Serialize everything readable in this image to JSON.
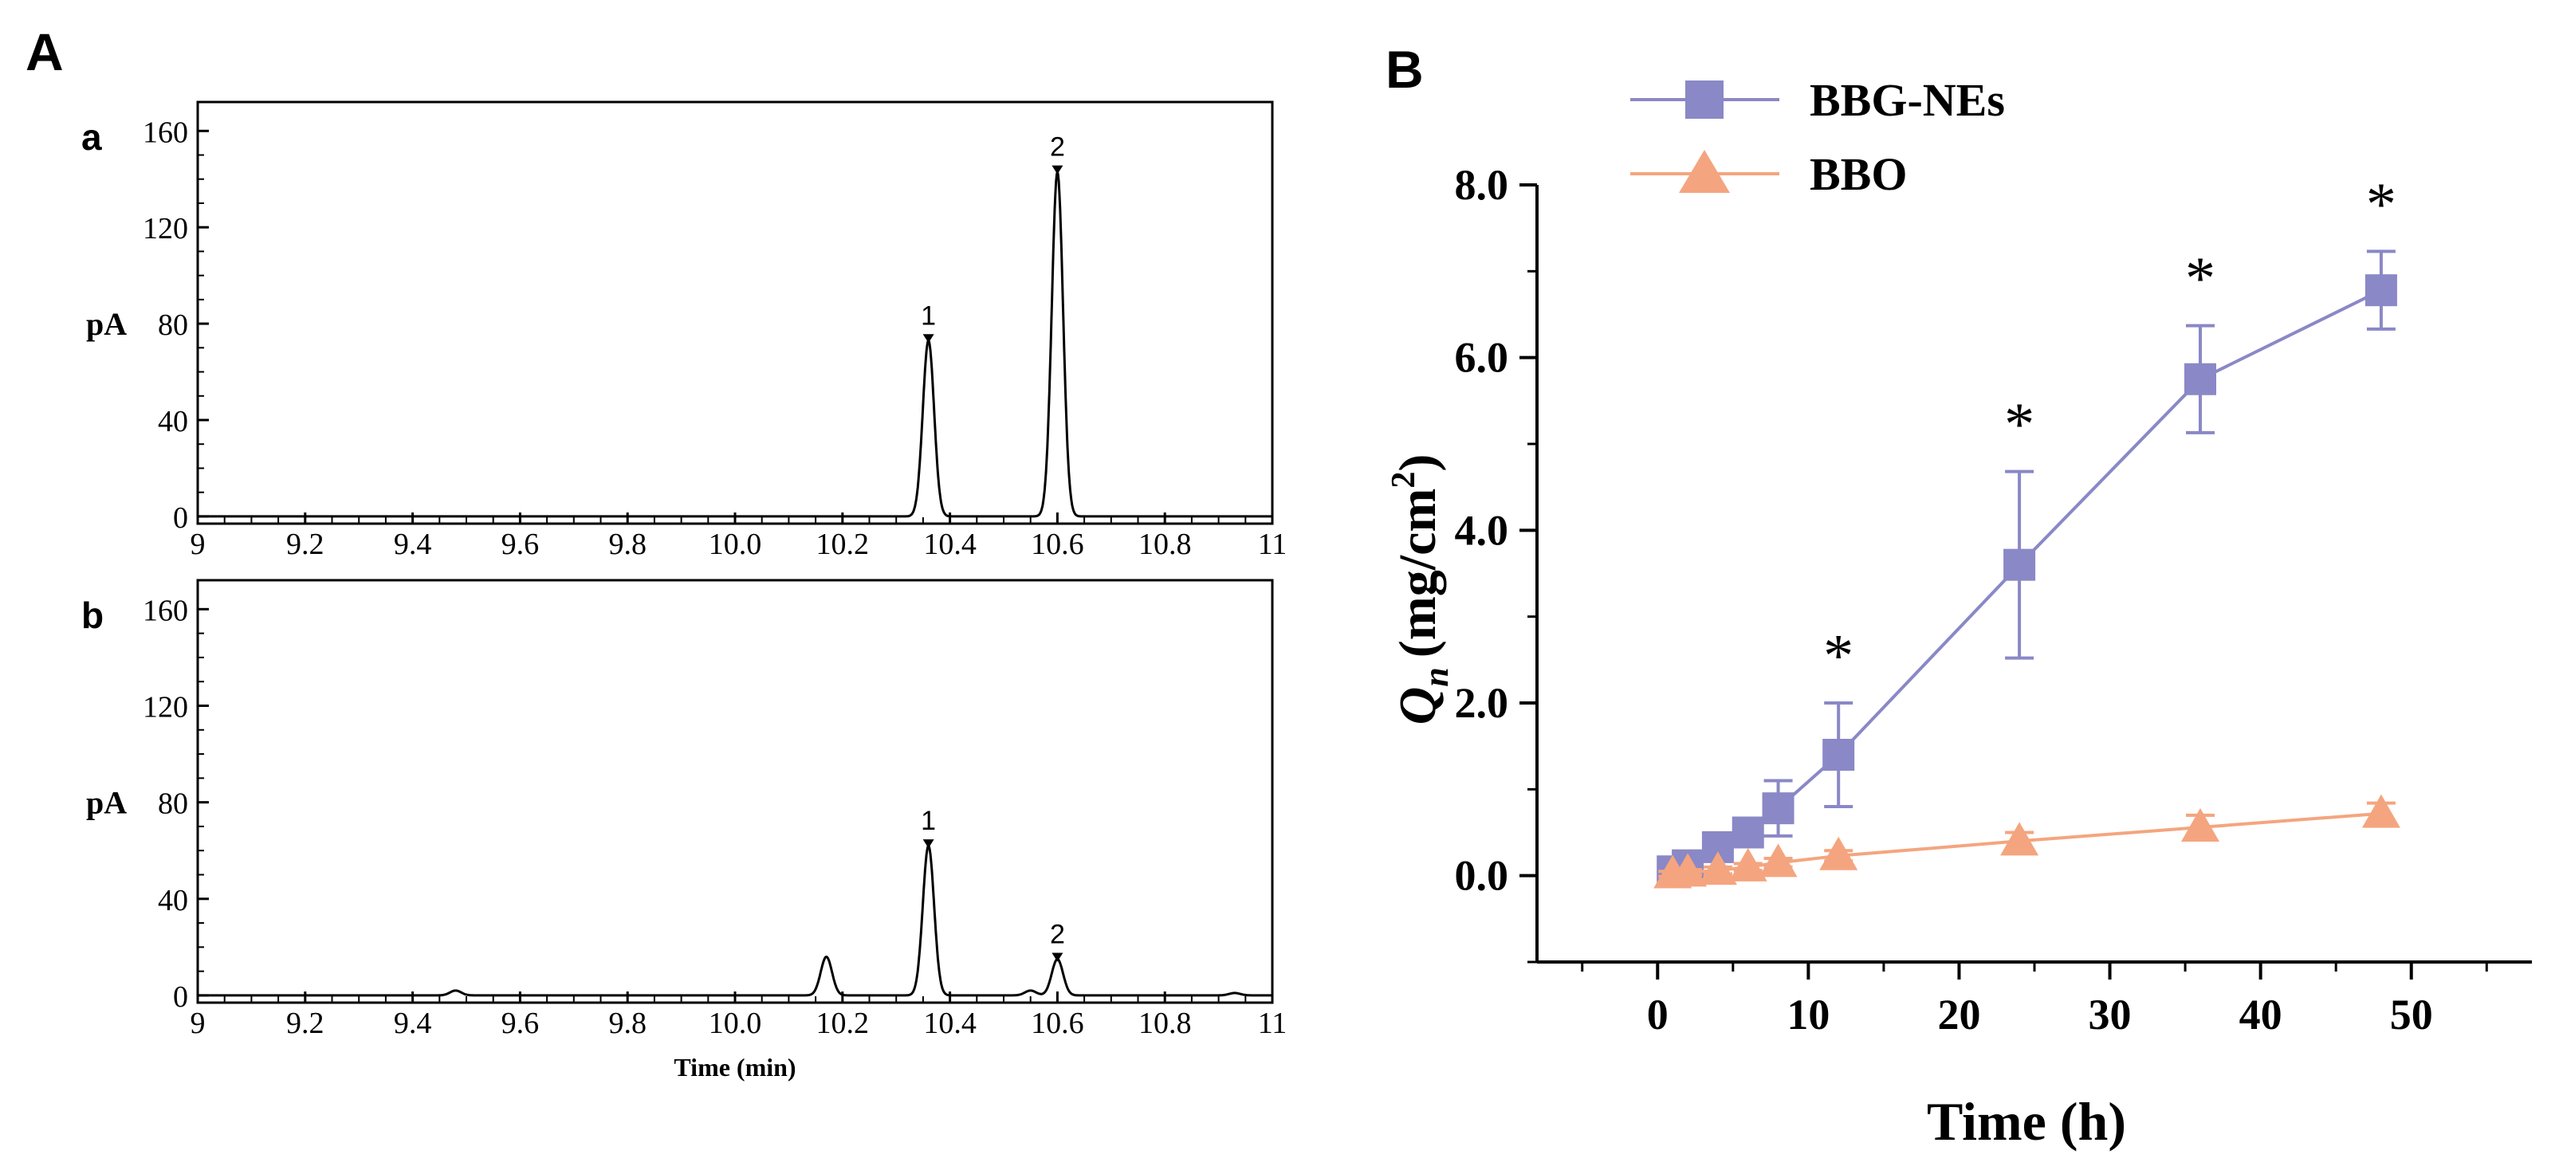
{
  "panels": {
    "A_label": "A",
    "B_label": "B"
  },
  "chart_data": [
    {
      "type": "line",
      "subplot_label": "a",
      "ylabel": "pA",
      "xlabel": "",
      "xlim": [
        9,
        11
      ],
      "ylim": [
        -3,
        172
      ],
      "xticks": [
        "9",
        "9.2",
        "9.4",
        "9.6",
        "9.8",
        "10.0",
        "10.2",
        "10.4",
        "10.6",
        "10.8",
        "11"
      ],
      "yticks": [
        "0",
        "40",
        "80",
        "120",
        "160"
      ],
      "peaks": [
        {
          "label": "1",
          "x": 10.36,
          "height": 73
        },
        {
          "label": "2",
          "x": 10.6,
          "height": 143
        }
      ],
      "grid": false
    },
    {
      "type": "line",
      "subplot_label": "b",
      "ylabel": "pA",
      "xlabel": "Time (min)",
      "xlim": [
        9,
        11
      ],
      "ylim": [
        -3,
        172
      ],
      "xticks": [
        "9",
        "9.2",
        "9.4",
        "9.6",
        "9.8",
        "10.0",
        "10.2",
        "10.4",
        "10.6",
        "10.8",
        "11"
      ],
      "yticks": [
        "0",
        "40",
        "80",
        "120",
        "160"
      ],
      "peaks": [
        {
          "label": "1",
          "x": 10.36,
          "height": 62
        },
        {
          "label": "2",
          "x": 10.6,
          "height": 15
        },
        {
          "label": "",
          "x": 10.17,
          "height": 16
        },
        {
          "label": "",
          "x": 9.48,
          "height": 2
        },
        {
          "label": "",
          "x": 10.55,
          "height": 2
        },
        {
          "label": "",
          "x": 10.93,
          "height": 1
        }
      ],
      "grid": false
    },
    {
      "type": "line",
      "ylabel_main": "Q",
      "ylabel_sub": "n",
      "ylabel_unit": "(mg/cm",
      "ylabel_sup": "2",
      "ylabel_close": ")",
      "xlabel": "Time (h)",
      "xlim": [
        -8,
        58
      ],
      "ylim": [
        -1.0,
        8.0
      ],
      "xticks": [
        "0",
        "10",
        "20",
        "30",
        "40",
        "50"
      ],
      "yticks": [
        "0.0",
        "2.0",
        "4.0",
        "6.0",
        "8.0"
      ],
      "legend_position": "top-left",
      "grid": false,
      "series": [
        {
          "name": "BBG-NEs",
          "color": "#8a88c6",
          "marker": "square",
          "x": [
            1,
            2,
            4,
            6,
            8,
            12,
            24,
            36,
            48
          ],
          "y": [
            0.05,
            0.12,
            0.33,
            0.5,
            0.78,
            1.4,
            3.6,
            5.75,
            6.78
          ],
          "err": [
            0.1,
            0.12,
            0.15,
            0.15,
            0.32,
            0.6,
            1.08,
            0.62,
            0.45
          ]
        },
        {
          "name": "BBO",
          "color": "#f4a57f",
          "marker": "triangle",
          "x": [
            1,
            2,
            4,
            6,
            8,
            12,
            24,
            36,
            48
          ],
          "y": [
            0.02,
            0.04,
            0.06,
            0.1,
            0.15,
            0.23,
            0.4,
            0.56,
            0.72
          ],
          "err": [
            0.03,
            0.03,
            0.04,
            0.04,
            0.05,
            0.06,
            0.1,
            0.14,
            0.12
          ]
        }
      ],
      "annotations": [
        {
          "text": "*",
          "x": 12
        },
        {
          "text": "*",
          "x": 24
        },
        {
          "text": "*",
          "x": 36
        },
        {
          "text": "*",
          "x": 48
        }
      ]
    }
  ]
}
